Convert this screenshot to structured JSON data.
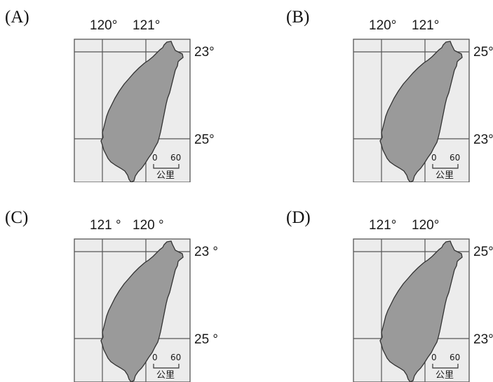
{
  "colors": {
    "frame_fill": "#ececec",
    "island_fill": "#9a9a9a",
    "line": "#555555"
  },
  "options": [
    {
      "label": "(A)",
      "lon_labels": [
        "120°",
        "121°"
      ],
      "lat_labels": [
        "23°",
        "25°"
      ],
      "scale": {
        "zero": "0",
        "sixty": "60",
        "unit": "公里"
      }
    },
    {
      "label": "(B)",
      "lon_labels": [
        "120°",
        "121°"
      ],
      "lat_labels": [
        "25°",
        "23°"
      ],
      "scale": {
        "zero": "0",
        "sixty": "60",
        "unit": "公里"
      }
    },
    {
      "label": "(C)",
      "lon_labels": [
        "121 °",
        "120 °"
      ],
      "lat_labels": [
        "23 °",
        "25 °"
      ],
      "scale": {
        "zero": "0",
        "sixty": "60",
        "unit": "公里"
      }
    },
    {
      "label": "(D)",
      "lon_labels": [
        "121°",
        "120°"
      ],
      "lat_labels": [
        "25°",
        "23°"
      ],
      "scale": {
        "zero": "0",
        "sixty": "60",
        "unit": "公里"
      }
    }
  ]
}
